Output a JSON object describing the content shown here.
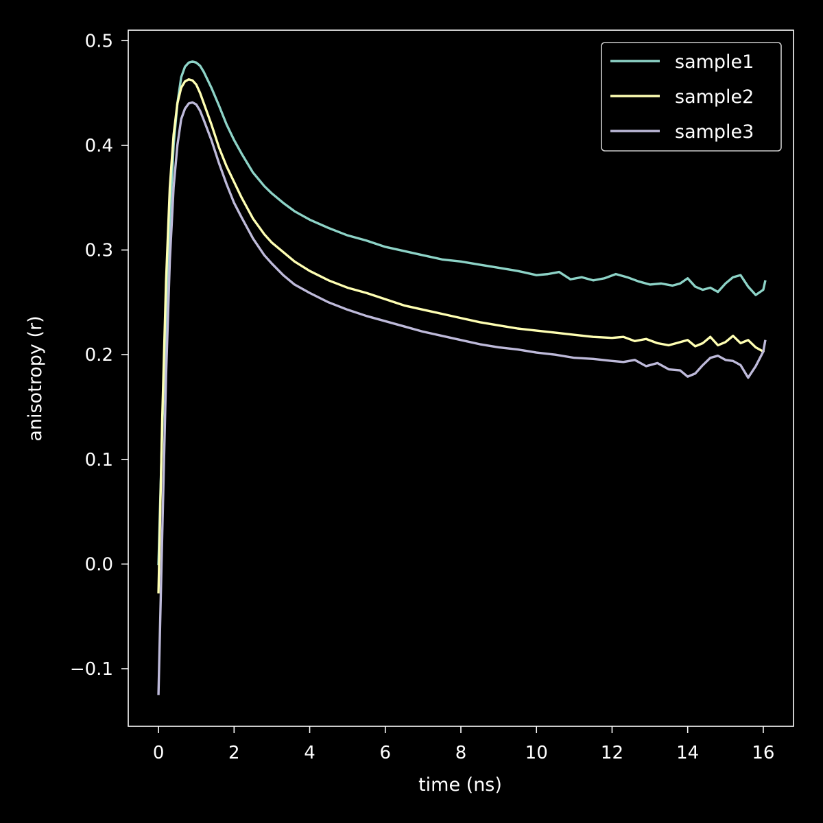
{
  "chart_data": {
    "type": "line",
    "title": "",
    "xlabel": "time (ns)",
    "ylabel": "anisotropy (r)",
    "xlim": [
      -0.8,
      16.8
    ],
    "ylim": [
      -0.155,
      0.51
    ],
    "xticks": [
      0,
      2,
      4,
      6,
      8,
      10,
      12,
      14,
      16
    ],
    "xtick_labels": [
      "0",
      "2",
      "4",
      "6",
      "8",
      "10",
      "12",
      "14",
      "16"
    ],
    "yticks": [
      -0.1,
      0.0,
      0.1,
      0.2,
      0.3,
      0.4,
      0.5
    ],
    "ytick_labels": [
      "−0.1",
      "0.0",
      "0.1",
      "0.2",
      "0.3",
      "0.4",
      "0.5"
    ],
    "grid": false,
    "legend_position": "top-right",
    "background": "#000000",
    "foreground": "#ffffff",
    "series": [
      {
        "name": "sample1",
        "color": "#8dd3c7",
        "x": [
          0.0,
          0.1,
          0.2,
          0.3,
          0.4,
          0.5,
          0.6,
          0.7,
          0.8,
          0.9,
          1.0,
          1.1,
          1.2,
          1.4,
          1.6,
          1.8,
          2.0,
          2.2,
          2.5,
          2.8,
          3.0,
          3.3,
          3.6,
          4.0,
          4.5,
          5.0,
          5.5,
          6.0,
          6.5,
          7.0,
          7.5,
          8.0,
          8.5,
          9.0,
          9.5,
          10.0,
          10.3,
          10.6,
          10.9,
          11.2,
          11.5,
          11.8,
          12.1,
          12.4,
          12.7,
          13.0,
          13.3,
          13.6,
          13.8,
          14.0,
          14.2,
          14.4,
          14.6,
          14.8,
          15.0,
          15.2,
          15.4,
          15.6,
          15.8,
          16.0,
          16.05
        ],
        "y": [
          0.0,
          0.13,
          0.24,
          0.33,
          0.4,
          0.44,
          0.465,
          0.475,
          0.479,
          0.48,
          0.479,
          0.476,
          0.47,
          0.455,
          0.438,
          0.42,
          0.405,
          0.392,
          0.374,
          0.361,
          0.354,
          0.345,
          0.337,
          0.329,
          0.321,
          0.314,
          0.309,
          0.303,
          0.299,
          0.295,
          0.291,
          0.289,
          0.286,
          0.283,
          0.28,
          0.276,
          0.277,
          0.279,
          0.272,
          0.274,
          0.271,
          0.273,
          0.277,
          0.274,
          0.27,
          0.267,
          0.268,
          0.266,
          0.268,
          0.273,
          0.265,
          0.262,
          0.264,
          0.26,
          0.268,
          0.274,
          0.276,
          0.265,
          0.257,
          0.262,
          0.27
        ]
      },
      {
        "name": "sample2",
        "color": "#ffffb3",
        "x": [
          0.0,
          0.1,
          0.2,
          0.3,
          0.4,
          0.5,
          0.6,
          0.7,
          0.8,
          0.9,
          1.0,
          1.1,
          1.2,
          1.4,
          1.6,
          1.8,
          2.0,
          2.2,
          2.5,
          2.8,
          3.0,
          3.3,
          3.6,
          4.0,
          4.5,
          5.0,
          5.5,
          6.0,
          6.5,
          7.0,
          7.5,
          8.0,
          8.5,
          9.0,
          9.5,
          10.0,
          10.5,
          11.0,
          11.5,
          12.0,
          12.3,
          12.6,
          12.9,
          13.2,
          13.5,
          13.8,
          14.0,
          14.2,
          14.4,
          14.6,
          14.8,
          15.0,
          15.2,
          15.4,
          15.6,
          15.8,
          16.0
        ],
        "y": [
          -0.027,
          0.14,
          0.27,
          0.36,
          0.41,
          0.44,
          0.455,
          0.461,
          0.463,
          0.462,
          0.458,
          0.45,
          0.44,
          0.42,
          0.398,
          0.38,
          0.365,
          0.35,
          0.33,
          0.315,
          0.307,
          0.298,
          0.289,
          0.28,
          0.271,
          0.264,
          0.259,
          0.253,
          0.247,
          0.243,
          0.239,
          0.235,
          0.231,
          0.228,
          0.225,
          0.223,
          0.221,
          0.219,
          0.217,
          0.216,
          0.217,
          0.213,
          0.215,
          0.211,
          0.209,
          0.212,
          0.214,
          0.208,
          0.211,
          0.217,
          0.209,
          0.212,
          0.218,
          0.211,
          0.214,
          0.207,
          0.203
        ]
      },
      {
        "name": "sample3",
        "color": "#bebada",
        "x": [
          0.0,
          0.1,
          0.2,
          0.3,
          0.4,
          0.5,
          0.6,
          0.7,
          0.8,
          0.9,
          1.0,
          1.1,
          1.2,
          1.4,
          1.6,
          1.8,
          2.0,
          2.2,
          2.5,
          2.8,
          3.0,
          3.3,
          3.6,
          4.0,
          4.5,
          5.0,
          5.5,
          6.0,
          6.5,
          7.0,
          7.5,
          8.0,
          8.5,
          9.0,
          9.5,
          10.0,
          10.5,
          11.0,
          11.5,
          12.0,
          12.3,
          12.6,
          12.9,
          13.2,
          13.5,
          13.8,
          14.0,
          14.2,
          14.4,
          14.6,
          14.8,
          15.0,
          15.2,
          15.4,
          15.6,
          15.8,
          16.0,
          16.05
        ],
        "y": [
          -0.124,
          0.03,
          0.18,
          0.29,
          0.36,
          0.4,
          0.425,
          0.435,
          0.44,
          0.441,
          0.439,
          0.433,
          0.424,
          0.405,
          0.383,
          0.363,
          0.345,
          0.331,
          0.311,
          0.295,
          0.287,
          0.276,
          0.267,
          0.259,
          0.25,
          0.243,
          0.237,
          0.232,
          0.227,
          0.222,
          0.218,
          0.214,
          0.21,
          0.207,
          0.205,
          0.202,
          0.2,
          0.197,
          0.196,
          0.194,
          0.193,
          0.195,
          0.189,
          0.192,
          0.186,
          0.185,
          0.179,
          0.182,
          0.19,
          0.197,
          0.199,
          0.195,
          0.194,
          0.19,
          0.178,
          0.189,
          0.203,
          0.213
        ]
      }
    ]
  }
}
